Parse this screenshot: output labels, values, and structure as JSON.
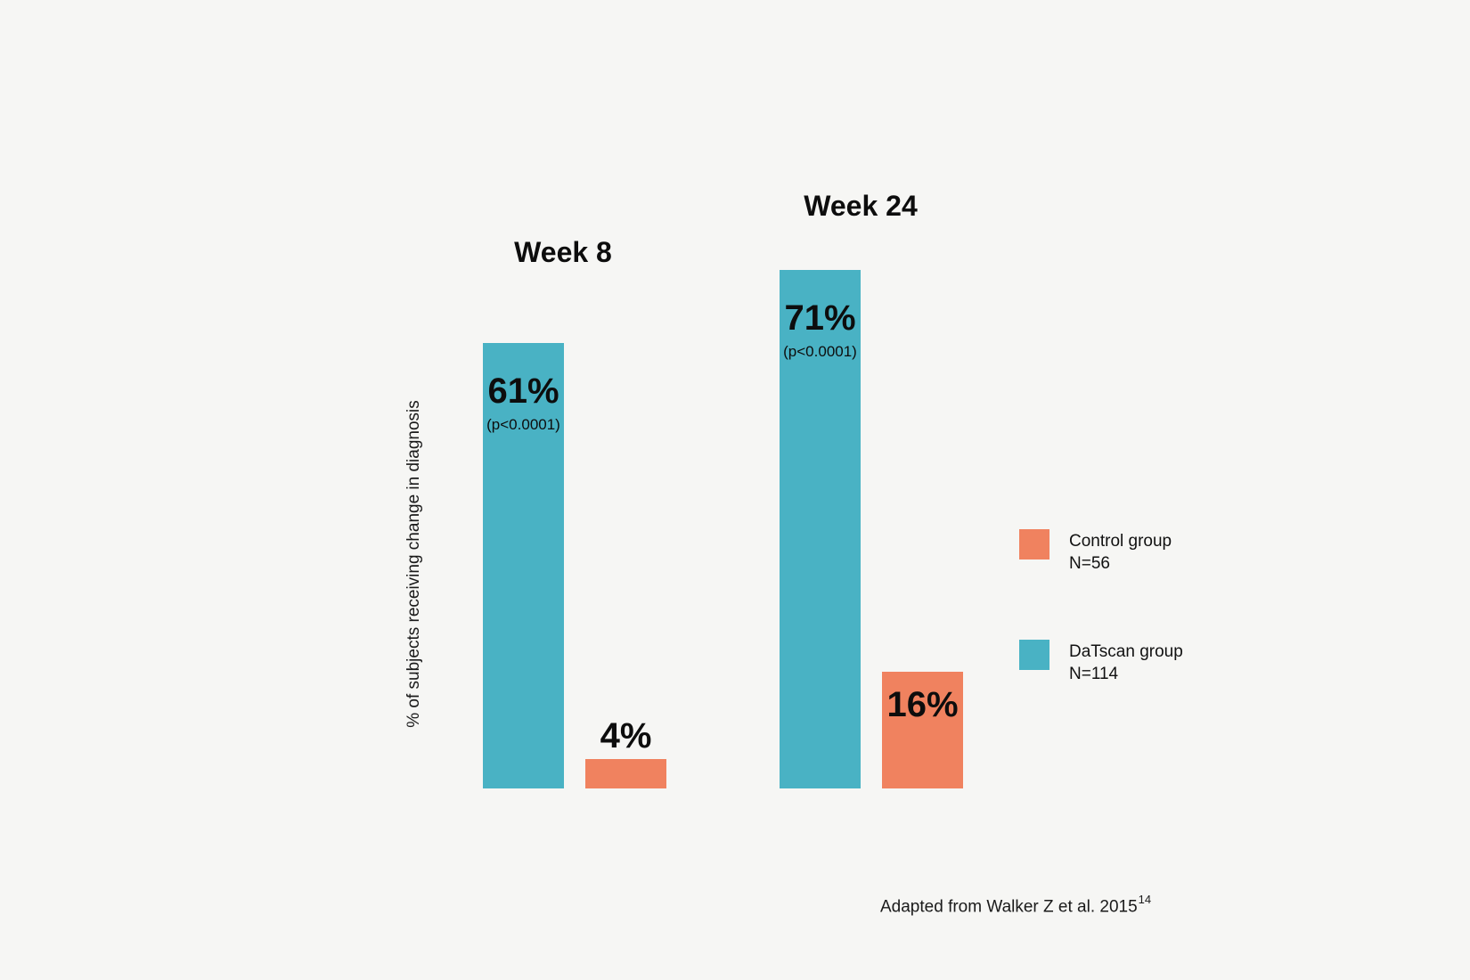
{
  "chart_data": {
    "type": "bar",
    "title": "",
    "ylabel": "% of subjects receiving change in diagnosis",
    "xlabel": "",
    "ylim": [
      0,
      100
    ],
    "grid": false,
    "legend_position": "right",
    "categories": [
      "Week 8",
      "Week 24"
    ],
    "series": [
      {
        "name": "DaTscan group",
        "values": [
          61,
          71
        ]
      },
      {
        "name": "Control group",
        "values": [
          4,
          16
        ]
      }
    ],
    "groups": [
      {
        "title": "Week 8",
        "bars": [
          {
            "series": "DaTscan group",
            "value": 61,
            "label": "61%",
            "note": "(p<0.0001)"
          },
          {
            "series": "Control group",
            "value": 4,
            "label": "4%",
            "note": ""
          }
        ]
      },
      {
        "title": "Week 24",
        "bars": [
          {
            "series": "DaTscan group",
            "value": 71,
            "label": "71%",
            "note": "(p<0.0001)"
          },
          {
            "series": "Control group",
            "value": 16,
            "label": "16%",
            "note": ""
          }
        ]
      }
    ]
  },
  "legend": {
    "items": [
      {
        "label": "Control group",
        "n": "N=56",
        "color": "#f0825f"
      },
      {
        "label": "DaTscan group",
        "n": "N=114",
        "color": "#49b2c4"
      }
    ]
  },
  "footer": {
    "text": "Adapted from Walker Z et al. 2015",
    "superscript": "14"
  },
  "colors": {
    "teal": "#49b2c4",
    "orange": "#f0825f",
    "background": "#f6f6f4",
    "text": "#111111"
  }
}
